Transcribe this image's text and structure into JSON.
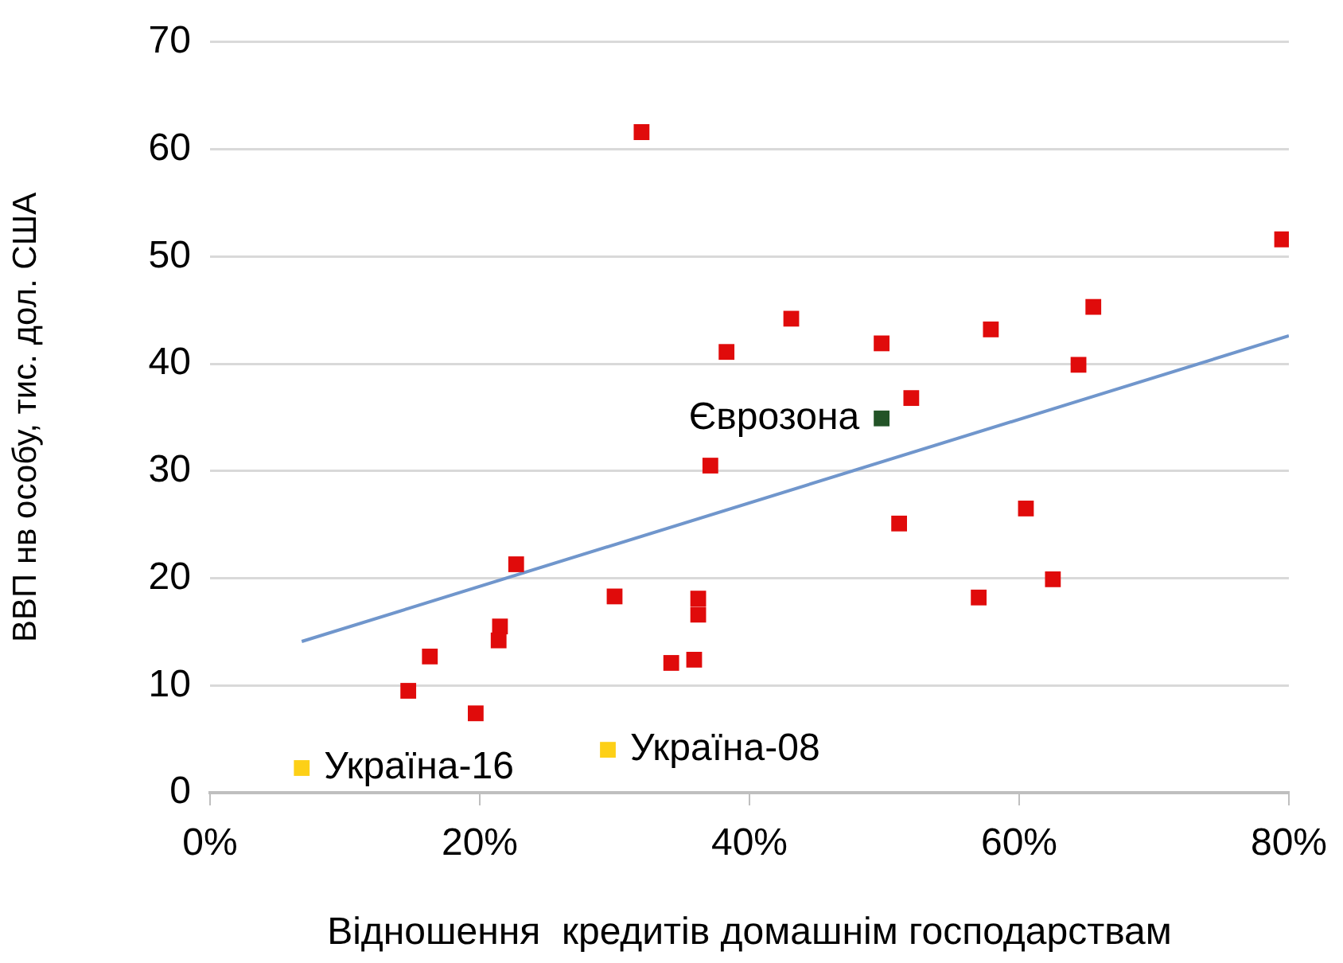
{
  "chart_data": {
    "type": "scatter",
    "xlabel": "Відношення  кредитів домашнім господарствам",
    "ylabel": "ВВП нв особу, тис. дол. США",
    "xlim": [
      0,
      80
    ],
    "xticks": [
      {
        "value": 0,
        "label": "0%"
      },
      {
        "value": 20,
        "label": "20%"
      },
      {
        "value": 40,
        "label": "40%"
      },
      {
        "value": 60,
        "label": "60%"
      },
      {
        "value": 80,
        "label": "80%"
      }
    ],
    "ylim": [
      0,
      70
    ],
    "yticks": [
      0,
      10,
      20,
      30,
      40,
      50,
      60,
      70
    ],
    "grid": "y",
    "legend": false,
    "marker": "square",
    "series": [
      {
        "color": "#e00b0b",
        "x": [
          32.0,
          79.5,
          65.5,
          43.1,
          57.9,
          49.8,
          38.3,
          64.4,
          52.0,
          37.1,
          60.5,
          51.1,
          22.7,
          30.0,
          57.0,
          62.5,
          36.2,
          36.2,
          21.5,
          21.4,
          16.3,
          34.2,
          35.9,
          14.7,
          19.7
        ],
        "values": [
          61.6,
          51.6,
          45.3,
          44.2,
          43.2,
          41.9,
          41.1,
          39.9,
          36.8,
          30.5,
          26.5,
          25.1,
          21.3,
          18.3,
          18.2,
          19.9,
          18.1,
          16.6,
          15.5,
          14.2,
          12.7,
          12.1,
          12.4,
          9.5,
          7.4
        ]
      },
      {
        "name": "Єврозона",
        "color": "#235427",
        "x": [
          49.8
        ],
        "values": [
          34.9
        ]
      },
      {
        "name": "Україна-16",
        "color": "#fdd017",
        "x": [
          6.8
        ],
        "values": [
          2.3
        ]
      },
      {
        "name": "Україна-08",
        "color": "#fdd017",
        "x": [
          29.5
        ],
        "values": [
          4.0
        ]
      },
      {
        "type": "line",
        "color": "#7096cc",
        "x": [
          6.8,
          80
        ],
        "values": [
          14.1,
          42.6
        ],
        "marker": "none"
      }
    ]
  }
}
